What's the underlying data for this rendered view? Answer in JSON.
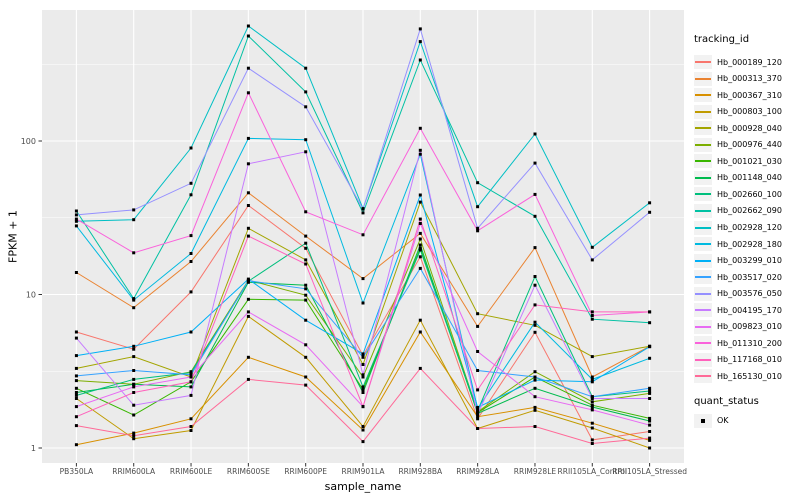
{
  "colors": {
    "panel_bg": "#EBEBEB",
    "grid": "#FFFFFF",
    "tick_text": "#4D4D4D",
    "tick_mark": "#333333",
    "title_text": "#000000",
    "legend_key_bg": "#F2F2F2",
    "point": "#000000"
  },
  "legend": {
    "color_title": "tracking_id",
    "shape_title": "quant_status",
    "shape_item_label": "OK"
  },
  "chart_data": {
    "type": "line",
    "title": "",
    "xlabel": "sample_name",
    "ylabel": "FPKM + 1",
    "x_categories": [
      "PB350LA",
      "RRIM600LA",
      "RRIM600LE",
      "RRIM600SE",
      "RRIM600PE",
      "RRIM901LA",
      "RRIM928BA",
      "RRIM928LA",
      "RRIM928LE",
      "RRII105LA_Control",
      "RRII105LA_Stressed"
    ],
    "y_axis": {
      "scale": "log10",
      "ticks": [
        1,
        10,
        100
      ],
      "tick_labels": [
        "1",
        "10",
        "100"
      ],
      "minor_ticks": [
        3.1623,
        31.623,
        316.23
      ],
      "range_approx": [
        0.8,
        720
      ]
    },
    "legend_position": "right",
    "grid": true,
    "point_shape": "filled-square",
    "series": [
      {
        "name": "Hb_000189_120",
        "color": "#F8766D",
        "values": [
          5.7,
          4.4,
          10.4,
          38,
          20,
          4.0,
          17.6,
          1.55,
          5.67,
          1.13,
          1.28
        ]
      },
      {
        "name": "Hb_000313_370",
        "color": "#EA8331",
        "values": [
          13.9,
          8.2,
          16.4,
          46,
          24,
          12.7,
          25,
          6.2,
          20.2,
          2.9,
          4.6
        ]
      },
      {
        "name": "Hb_000367_310",
        "color": "#D89000",
        "values": [
          1.05,
          1.25,
          1.55,
          3.9,
          2.9,
          1.31,
          5.7,
          1.6,
          1.84,
          1.45,
          1.12
        ]
      },
      {
        "name": "Hb_000803_100",
        "color": "#C09B00",
        "values": [
          2.1,
          1.15,
          1.3,
          7.2,
          3.9,
          1.38,
          6.8,
          1.34,
          1.76,
          1.35,
          1.0
        ]
      },
      {
        "name": "Hb_000928_040",
        "color": "#A3A500",
        "values": [
          3.3,
          3.94,
          2.9,
          27,
          16.8,
          3.5,
          40,
          7.5,
          6.3,
          3.94,
          4.6
        ]
      },
      {
        "name": "Hb_000976_440",
        "color": "#7CAE00",
        "values": [
          2.75,
          2.6,
          3.14,
          12.4,
          9.9,
          2.9,
          23,
          1.72,
          3.14,
          2.0,
          2.27
        ]
      },
      {
        "name": "Hb_001021_030",
        "color": "#39B600",
        "values": [
          2.45,
          1.64,
          2.7,
          9.3,
          9.2,
          2.4,
          20,
          1.7,
          2.9,
          1.9,
          1.56
        ]
      },
      {
        "name": "Hb_001148_040",
        "color": "#00BB4E",
        "values": [
          2.3,
          2.6,
          2.5,
          12.0,
          11.5,
          2.3,
          21,
          1.68,
          2.45,
          1.85,
          1.5
        ]
      },
      {
        "name": "Hb_002660_100",
        "color": "#00BF7D",
        "values": [
          2.2,
          2.8,
          3.1,
          12.2,
          21.6,
          2.5,
          19.5,
          1.75,
          13.1,
          2.16,
          2.35
        ]
      },
      {
        "name": "Hb_002662_090",
        "color": "#00C1A3",
        "values": [
          35,
          9.4,
          44.6,
          483,
          209,
          34,
          337,
          53.5,
          32.3,
          6.9,
          6.55
        ]
      },
      {
        "name": "Hb_002928_120",
        "color": "#00BFC4",
        "values": [
          30,
          30.7,
          90,
          561,
          298,
          36.3,
          444,
          37.3,
          111,
          20.3,
          39.6
        ]
      },
      {
        "name": "Hb_002928_180",
        "color": "#00BAE0",
        "values": [
          28,
          9.2,
          18.5,
          104,
          102,
          8.8,
          82,
          1.8,
          6.6,
          2.8,
          3.84
        ]
      },
      {
        "name": "Hb_003299_010",
        "color": "#00B0F6",
        "values": [
          4.0,
          4.6,
          5.7,
          12.6,
          6.8,
          4.1,
          44.5,
          1.84,
          2.77,
          2.7,
          4.57
        ]
      },
      {
        "name": "Hb_003517_020",
        "color": "#35A2FF",
        "values": [
          2.95,
          3.2,
          3.0,
          12.3,
          10.9,
          3.9,
          14.8,
          3.2,
          2.9,
          2.16,
          2.45
        ]
      },
      {
        "name": "Hb_003576_050",
        "color": "#9590FF",
        "values": [
          33,
          35.6,
          53,
          298,
          167,
          36,
          537,
          27,
          71.8,
          16.8,
          34.3
        ]
      },
      {
        "name": "Hb_004195_170",
        "color": "#C77CFF",
        "values": [
          5.2,
          1.9,
          2.2,
          71,
          85,
          3.0,
          87,
          1.65,
          11.5,
          2.1,
          2.1
        ]
      },
      {
        "name": "Hb_009823_010",
        "color": "#E76BF3",
        "values": [
          1.86,
          2.5,
          2.9,
          7.7,
          4.7,
          1.86,
          29,
          4.25,
          2.16,
          1.77,
          1.41
        ]
      },
      {
        "name": "Hb_011310_200",
        "color": "#FA62DB",
        "values": [
          31,
          18.7,
          24.2,
          206,
          34.6,
          24.5,
          121,
          26,
          44.9,
          7.3,
          7.7
        ]
      },
      {
        "name": "Hb_117168_010",
        "color": "#FF62BC",
        "values": [
          1.6,
          2.3,
          2.7,
          24,
          15.8,
          1.86,
          31,
          2.39,
          8.55,
          7.7,
          7.7
        ]
      },
      {
        "name": "Hb_165130_010",
        "color": "#FF6A98",
        "values": [
          1.4,
          1.2,
          1.38,
          2.8,
          2.57,
          1.1,
          3.3,
          1.34,
          1.38,
          1.07,
          1.16
        ]
      }
    ]
  }
}
